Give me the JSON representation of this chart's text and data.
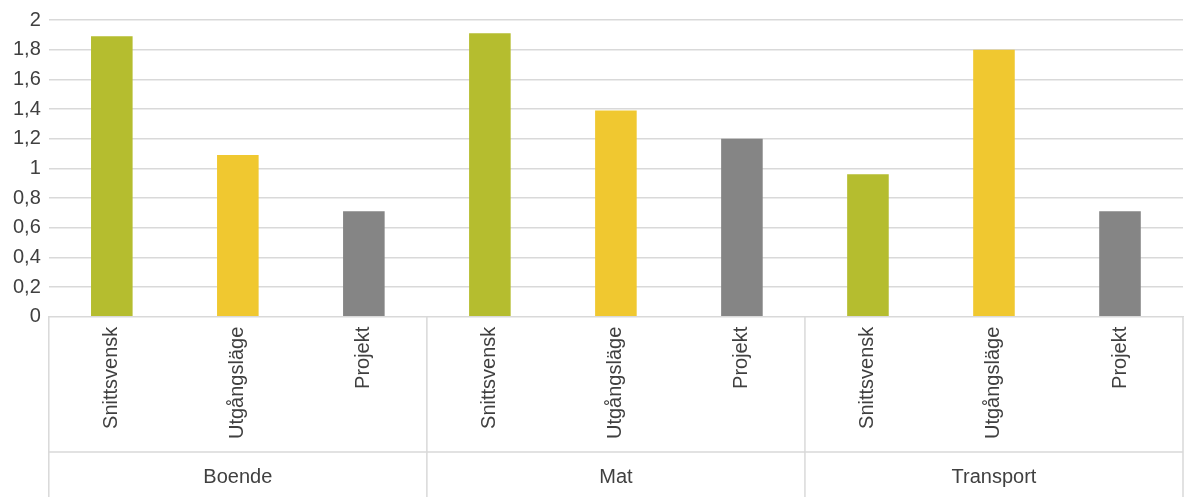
{
  "chart_data": {
    "type": "bar",
    "categories": [
      "Snittsvensk",
      "Utgångsläge",
      "Projekt",
      "Snittsvensk",
      "Utgångsläge",
      "Projekt",
      "Snittsvensk",
      "Utgångsläge",
      "Projekt"
    ],
    "values": [
      1.89,
      1.09,
      0.71,
      1.91,
      1.39,
      1.2,
      0.96,
      1.8,
      0.71
    ],
    "colors": [
      "#b5bd2f",
      "#f0c830",
      "#858585",
      "#b5bd2f",
      "#f0c830",
      "#858585",
      "#b5bd2f",
      "#f0c830",
      "#858585"
    ],
    "ylim": [
      0,
      2
    ],
    "yticks": [
      0,
      {
        "value": 0.2,
        "label": "0,2"
      },
      {
        "value": 0.4,
        "label": "0,4"
      },
      {
        "value": 0.6,
        "label": "0,6"
      },
      {
        "value": 0.8,
        "label": "0,8"
      },
      1,
      {
        "value": 1.2,
        "label": "1,2"
      },
      {
        "value": 1.4,
        "label": "1,4"
      },
      {
        "value": 1.6,
        "label": "1,6"
      },
      {
        "value": 1.8,
        "label": "1,8"
      },
      2
    ],
    "annotations": [
      "Boende",
      "Mat",
      "Transport"
    ],
    "grid": "y"
  }
}
